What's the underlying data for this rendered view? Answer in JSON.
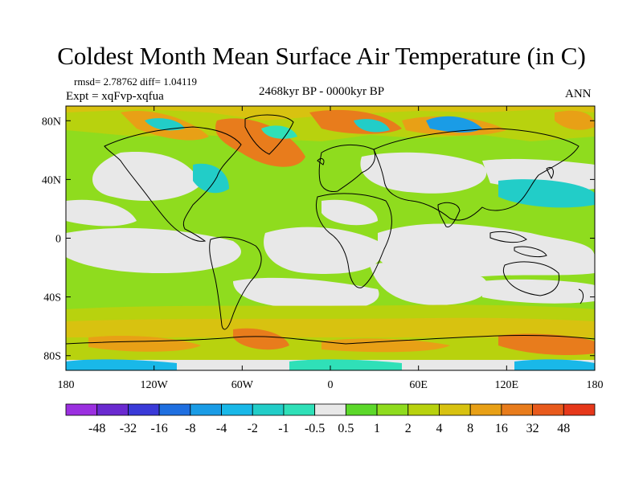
{
  "title": "Coldest Month Mean Surface Air Temperature (in C)",
  "stats": "rmsd= 2.78762  diff= 1.04119",
  "experiment": "Expt = xqFvp-xqfua",
  "period": "2468kyr BP - 0000kyr BP",
  "season": "ANN",
  "map": {
    "lon_range": [
      -180,
      180
    ],
    "lat_range": [
      -90,
      90
    ],
    "lat_ticks": [
      {
        "value": 80,
        "label": "80N"
      },
      {
        "value": 40,
        "label": "40N"
      },
      {
        "value": 0,
        "label": "0"
      },
      {
        "value": -40,
        "label": "40S"
      },
      {
        "value": -80,
        "label": "80S"
      }
    ],
    "lon_ticks": [
      {
        "value": -180,
        "label": "180"
      },
      {
        "value": -120,
        "label": "120W"
      },
      {
        "value": -60,
        "label": "60W"
      },
      {
        "value": 0,
        "label": "0"
      },
      {
        "value": 60,
        "label": "60E"
      },
      {
        "value": 120,
        "label": "120E"
      },
      {
        "value": 180,
        "label": "180"
      }
    ]
  },
  "colorbar": {
    "colors": [
      "#9b30e0",
      "#6a2ad0",
      "#3a3ad8",
      "#1f6fe0",
      "#1a9ce6",
      "#19b8e8",
      "#22cdc8",
      "#2fe0b8",
      "#e8e8e8",
      "#5cd82a",
      "#8fdc1e",
      "#b8d20e",
      "#d8c210",
      "#e8a016",
      "#e87c1c",
      "#e85a1c",
      "#e6381a"
    ],
    "labels": [
      "-48",
      "-32",
      "-16",
      "-8",
      "-4",
      "-2",
      "-1",
      "-0.5",
      "0.5",
      "1",
      "2",
      "4",
      "8",
      "16",
      "32",
      "48"
    ]
  }
}
